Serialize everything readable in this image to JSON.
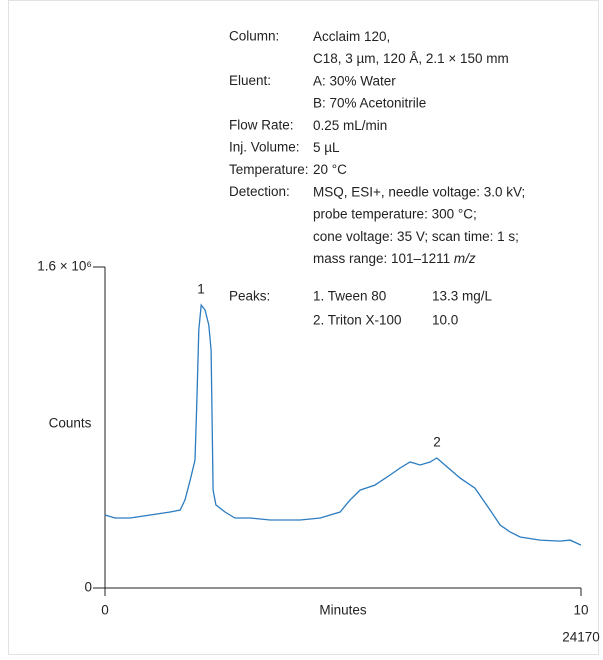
{
  "chart_data": {
    "type": "line",
    "x_label": "Minutes",
    "y_label": "Counts",
    "figure_id": "24170",
    "xlim": [
      0,
      10
    ],
    "xticks": [
      0,
      10
    ],
    "ylim": [
      0,
      1600000
    ],
    "yticks": [
      0,
      {
        "value": 1600000,
        "label": "1.6 × 10⁶"
      }
    ],
    "series": [
      {
        "name": "chromatogram",
        "color": "#2b7cc0",
        "x": [
          0,
          0.21,
          0.53,
          0.95,
          1.37,
          1.58,
          1.68,
          1.79,
          1.89,
          1.93,
          1.97,
          2.02,
          2.1,
          2.18,
          2.23,
          2.25,
          2.27,
          2.33,
          2.52,
          2.73,
          3.05,
          3.47,
          4.1,
          4.52,
          4.94,
          5.15,
          5.36,
          5.67,
          5.99,
          6.2,
          6.41,
          6.62,
          6.83,
          6.97,
          7.14,
          7.46,
          7.77,
          8.09,
          8.3,
          8.51,
          8.72,
          9.14,
          9.56,
          9.77,
          10.0
        ],
        "values": [
          364000,
          349000,
          349000,
          364000,
          379000,
          389000,
          439000,
          538000,
          638000,
          937000,
          1286000,
          1410000,
          1386000,
          1311000,
          1186000,
          837000,
          488000,
          414000,
          379000,
          349000,
          349000,
          339000,
          339000,
          349000,
          379000,
          439000,
          488000,
          513000,
          563000,
          598000,
          628000,
          613000,
          628000,
          648000,
          613000,
          548000,
          498000,
          389000,
          314000,
          279000,
          254000,
          239000,
          234000,
          239000,
          214000
        ]
      }
    ],
    "peak_labels": [
      "1",
      "2"
    ],
    "conditions": [
      {
        "label": "Column:",
        "lines": [
          "Acclaim 120,",
          "C18, 3 µm, 120 Å, 2.1 × 150 mm"
        ]
      },
      {
        "label": "Eluent:",
        "lines": [
          "A: 30% Water",
          "B: 70% Acetonitrile"
        ]
      },
      {
        "label": "Flow Rate:",
        "lines": [
          "0.25 mL/min"
        ]
      },
      {
        "label": "Inj. Volume:",
        "lines": [
          "5 µL"
        ]
      },
      {
        "label": "Temperature:",
        "lines": [
          "20 °C"
        ]
      },
      {
        "label": "Detection:",
        "lines": [
          "MSQ, ESI+, needle voltage: 3.0 kV;",
          "probe temperature: 300 °C;",
          "cone voltage: 35 V; scan time: 1 s;",
          "mass range: 101–1211 "
        ]
      }
    ],
    "detection_unit": "m/z",
    "peaks_label": "Peaks:",
    "peaks": [
      [
        "1. Tween 80",
        "13.3 mg/L"
      ],
      [
        "2. Triton X-100",
        "10.0"
      ]
    ]
  }
}
